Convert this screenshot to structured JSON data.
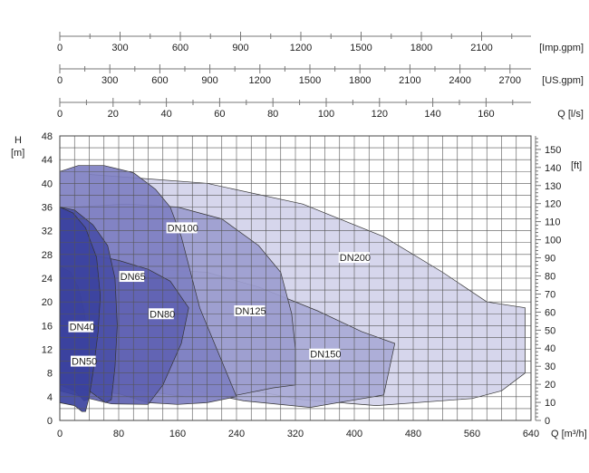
{
  "chart_data": {
    "type": "area",
    "top_scales": [
      {
        "unit_label": "[Imp.gpm]",
        "ticks": [
          "0",
          "300",
          "600",
          "900",
          "1200",
          "1500",
          "1800",
          "2100"
        ]
      },
      {
        "unit_label": "[US.gpm]",
        "ticks": [
          "0",
          "300",
          "600",
          "900",
          "1200",
          "1500",
          "1800",
          "2100",
          "2400",
          "2700"
        ]
      },
      {
        "unit_label": "Q [l/s]",
        "ticks": [
          "0",
          "20",
          "40",
          "60",
          "80",
          "100",
          "120",
          "140",
          "160"
        ]
      }
    ],
    "xlabel": "Q [m³/h]",
    "x_ticks": [
      "0",
      "80",
      "160",
      "240",
      "320",
      "400",
      "480",
      "560",
      "640"
    ],
    "xlim": [
      0,
      640
    ],
    "ylabel_left": "H",
    "ylabel_left_unit": "[m]",
    "y_ticks": [
      "0",
      "4",
      "8",
      "12",
      "16",
      "20",
      "24",
      "28",
      "32",
      "36",
      "40",
      "44",
      "48"
    ],
    "ylim": [
      0,
      48
    ],
    "ylabel_right": "[ft]",
    "y2_ticks": [
      "0",
      "10",
      "20",
      "30",
      "40",
      "50",
      "60",
      "70",
      "80",
      "90",
      "100",
      "110",
      "120",
      "130",
      "140",
      "150"
    ],
    "grid": true,
    "colors": {
      "DN200": "#d3d3ea",
      "DN150": "#a9aad6",
      "DN125": "#9c9dcf",
      "DN100": "#7f80c2",
      "DN80": "#5f62b2",
      "DN65": "#4a4fa8",
      "DN40": "#3c43a0",
      "DN50": "#2f3895"
    },
    "series": [
      {
        "name": "DN200",
        "label_pos": [
          380,
          27.5
        ],
        "points": [
          [
            40,
            41.5
          ],
          [
            200,
            40
          ],
          [
            330,
            36.5
          ],
          [
            440,
            31
          ],
          [
            520,
            25
          ],
          [
            580,
            20
          ],
          [
            632,
            19
          ],
          [
            632,
            8
          ],
          [
            600,
            5
          ],
          [
            560,
            3.7
          ],
          [
            430,
            2.5
          ],
          [
            330,
            3.5
          ],
          [
            240,
            5.5
          ],
          [
            150,
            8.5
          ],
          [
            90,
            11
          ],
          [
            40,
            12
          ]
        ]
      },
      {
        "name": "DN150",
        "label_pos": [
          340,
          11.2
        ],
        "points": [
          [
            60,
            24
          ],
          [
            130,
            25.5
          ],
          [
            200,
            25
          ],
          [
            270,
            22.5
          ],
          [
            350,
            18.5
          ],
          [
            410,
            15
          ],
          [
            455,
            13
          ],
          [
            440,
            4.3
          ],
          [
            340,
            2.2
          ],
          [
            250,
            3.3
          ],
          [
            170,
            5.3
          ],
          [
            100,
            8
          ],
          [
            60,
            9
          ]
        ]
      },
      {
        "name": "DN125",
        "label_pos": [
          238,
          18.5
        ],
        "points": [
          [
            20,
            36
          ],
          [
            90,
            36.5
          ],
          [
            160,
            36
          ],
          [
            220,
            34
          ],
          [
            270,
            29.5
          ],
          [
            300,
            25
          ],
          [
            315,
            18
          ],
          [
            320,
            12
          ],
          [
            320,
            6
          ],
          [
            290,
            5.5
          ],
          [
            230,
            4
          ],
          [
            170,
            4
          ],
          [
            110,
            5
          ],
          [
            50,
            6
          ],
          [
            20,
            6
          ]
        ]
      },
      {
        "name": "DN100",
        "label_pos": [
          146,
          32.5
        ],
        "points": [
          [
            0,
            42
          ],
          [
            25,
            43
          ],
          [
            60,
            43
          ],
          [
            100,
            41.8
          ],
          [
            130,
            39
          ],
          [
            150,
            36
          ],
          [
            165,
            31
          ],
          [
            190,
            19
          ],
          [
            220,
            10
          ],
          [
            240,
            4
          ],
          [
            200,
            3
          ],
          [
            160,
            2.7
          ],
          [
            120,
            3
          ],
          [
            80,
            4.5
          ],
          [
            40,
            5
          ],
          [
            0,
            5
          ]
        ]
      },
      {
        "name": "DN80",
        "label_pos": [
          122,
          18
        ],
        "points": [
          [
            0,
            28
          ],
          [
            40,
            28
          ],
          [
            80,
            27
          ],
          [
            120,
            25.5
          ],
          [
            150,
            23.5
          ],
          [
            175,
            19
          ],
          [
            165,
            13
          ],
          [
            140,
            6
          ],
          [
            120,
            2.7
          ],
          [
            70,
            2.8
          ],
          [
            30,
            4
          ],
          [
            0,
            5
          ]
        ]
      },
      {
        "name": "DN65",
        "label_pos": [
          82,
          24.3
        ],
        "points": [
          [
            0,
            36
          ],
          [
            20,
            35.5
          ],
          [
            45,
            33
          ],
          [
            65,
            29.5
          ],
          [
            75,
            24
          ],
          [
            78,
            16
          ],
          [
            75,
            9
          ],
          [
            70,
            3.5
          ],
          [
            62,
            3
          ],
          [
            40,
            5
          ],
          [
            20,
            6
          ],
          [
            0,
            6
          ]
        ]
      },
      {
        "name": "DN50",
        "label_pos": [
          16,
          10
        ],
        "points": [
          [
            0,
            26
          ],
          [
            15,
            25
          ],
          [
            25,
            22.5
          ],
          [
            33,
            18.5
          ],
          [
            38,
            14
          ],
          [
            40,
            9
          ],
          [
            38,
            3.5
          ],
          [
            33,
            3.3
          ],
          [
            20,
            5
          ],
          [
            0,
            6
          ]
        ]
      },
      {
        "name": "DN40",
        "label_pos": [
          13,
          15.8
        ],
        "points": [
          [
            0,
            36
          ],
          [
            18,
            35
          ],
          [
            35,
            32.5
          ],
          [
            50,
            27.5
          ],
          [
            55,
            21
          ],
          [
            52,
            15
          ],
          [
            45,
            8
          ],
          [
            40,
            4
          ],
          [
            35,
            1.5
          ],
          [
            30,
            1.5
          ],
          [
            20,
            2.5
          ],
          [
            0,
            3
          ]
        ]
      }
    ]
  }
}
